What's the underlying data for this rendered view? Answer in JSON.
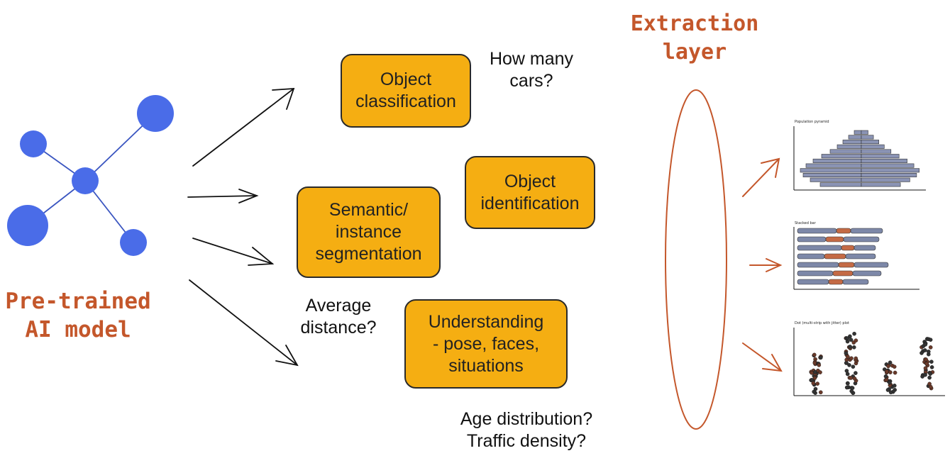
{
  "model_label": "Pre-trained\nAI model",
  "extraction_label": "Extraction\nlayer",
  "tasks": {
    "object_classification": "Object\nclassification",
    "object_identification": "Object\nidentification",
    "segmentation": "Semantic/\ninstance\nsegmentation",
    "understanding": "Understanding\n- pose, faces,\nsituations"
  },
  "questions": {
    "cars": "How many\ncars?",
    "distance": "Average\ndistance?",
    "age_traffic": "Age distribution?\nTraffic density?"
  },
  "mini_charts": {
    "pyramid_title": "Population pyramid",
    "stacked_title": "Stacked bar",
    "dot_title": "Dot (multi-strip with jitter) plot"
  },
  "colors": {
    "node": "#4A6CE8",
    "box": "#F5AE12",
    "accent": "#C4572B"
  }
}
